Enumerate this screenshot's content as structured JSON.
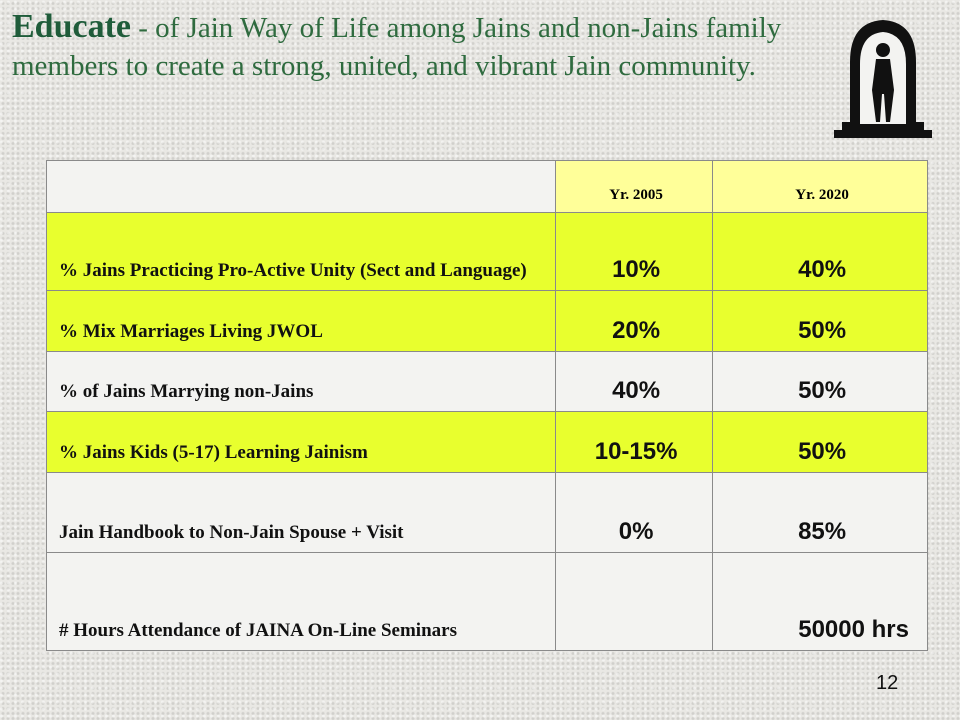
{
  "header": {
    "heading": "Educate",
    "text": "- of Jain Way of Life among Jains and non-Jains family members to create a strong, united, and vibrant Jain community."
  },
  "table": {
    "columns": [
      "Yr. 2005",
      "Yr. 2020"
    ],
    "rows": [
      {
        "label": "% Jains Practicing Pro-Active Unity (Sect and Language)",
        "y2005": "10%",
        "y2020": "40%"
      },
      {
        "label": "% Mix Marriages Living JWOL",
        "y2005": "20%",
        "y2020": "50%"
      },
      {
        "label": "% of Jains Marrying non-Jains",
        "y2005": "40%",
        "y2020": "50%"
      },
      {
        "label": "% Jains Kids (5-17) Learning Jainism",
        "y2005": "10-15%",
        "y2020": "50%"
      },
      {
        "label": "Jain Handbook to Non-Jain Spouse + Visit",
        "y2005": "0%",
        "y2020": "85%"
      },
      {
        "label": "# Hours Attendance of JAINA On-Line Seminars",
        "y2020": "50000 hrs"
      }
    ]
  },
  "footer": {
    "page": "12"
  }
}
